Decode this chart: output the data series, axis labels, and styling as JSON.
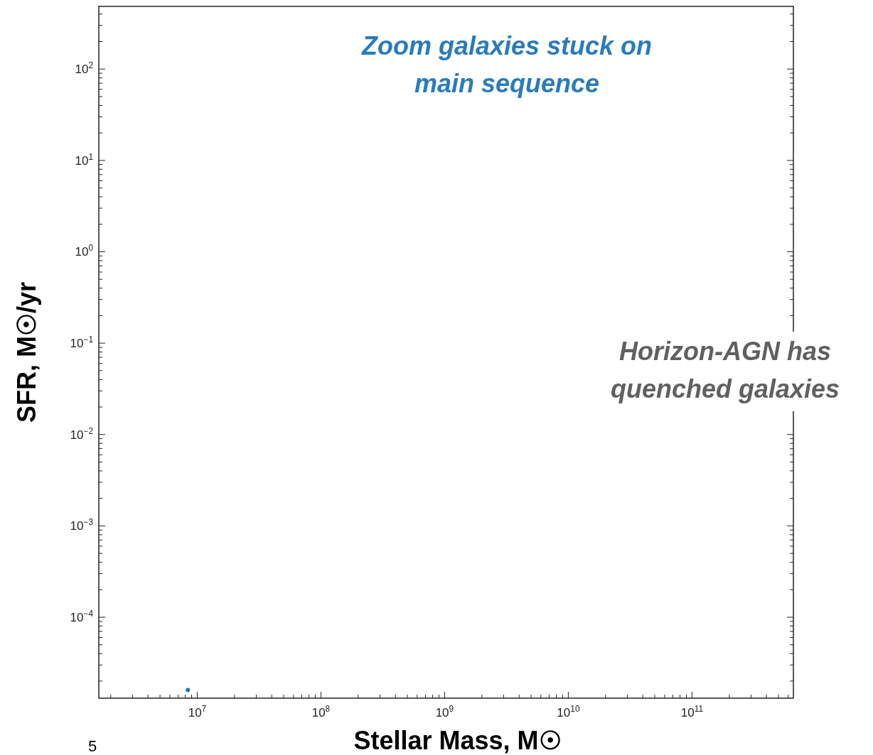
{
  "chart_data": {
    "type": "scatter",
    "xlabel": "Stellar Mass, M☉",
    "ylabel": "SFR, M☉/yr",
    "log": "xy",
    "grid": false,
    "marker": "circle",
    "xlim": [
      1600000,
      660000000000
    ],
    "ylim": [
      1.3e-05,
      485
    ],
    "xticks": [
      {
        "value": 2000000,
        "label": null
      },
      {
        "value": 3000000,
        "label": null
      },
      {
        "value": 4000000,
        "label": null
      },
      {
        "value": 5000000,
        "label": null
      },
      {
        "value": 6000000,
        "label": null
      },
      {
        "value": 7000000,
        "label": null
      },
      {
        "value": 8000000,
        "label": null
      },
      {
        "value": 9000000,
        "label": null
      },
      {
        "value": 10000000,
        "label": "10$^{7}$"
      },
      {
        "value": 20000000,
        "label": null
      },
      {
        "value": 30000000,
        "label": null
      },
      {
        "value": 40000000,
        "label": null
      },
      {
        "value": 50000000,
        "label": null
      },
      {
        "value": 60000000,
        "label": null
      },
      {
        "value": 70000000,
        "label": null
      },
      {
        "value": 80000000,
        "label": null
      },
      {
        "value": 90000000,
        "label": null
      },
      {
        "value": 100000000,
        "label": "10$^{8}$"
      },
      {
        "value": 200000000,
        "label": null
      },
      {
        "value": 300000000,
        "label": null
      },
      {
        "value": 400000000,
        "label": null
      },
      {
        "value": 500000000,
        "label": null
      },
      {
        "value": 600000000,
        "label": null
      },
      {
        "value": 700000000,
        "label": null
      },
      {
        "value": 800000000,
        "label": null
      },
      {
        "value": 900000000,
        "label": null
      },
      {
        "value": 1000000000,
        "label": "10$^{9}$"
      },
      {
        "value": 2000000000,
        "label": null
      },
      {
        "value": 3000000000,
        "label": null
      },
      {
        "value": 4000000000,
        "label": null
      },
      {
        "value": 5000000000,
        "label": null
      },
      {
        "value": 6000000000,
        "label": null
      },
      {
        "value": 7000000000,
        "label": null
      },
      {
        "value": 8000000000,
        "label": null
      },
      {
        "value": 9000000000,
        "label": null
      },
      {
        "value": 10000000000,
        "label": "10$^{10}$"
      },
      {
        "value": 20000000000,
        "label": null
      },
      {
        "value": 30000000000,
        "label": null
      },
      {
        "value": 40000000000,
        "label": null
      },
      {
        "value": 50000000000,
        "label": null
      },
      {
        "value": 60000000000,
        "label": null
      },
      {
        "value": 70000000000,
        "label": null
      },
      {
        "value": 80000000000,
        "label": null
      },
      {
        "value": 90000000000,
        "label": null
      },
      {
        "value": 100000000000,
        "label": "10$^{11}$"
      },
      {
        "value": 200000000000,
        "label": null
      },
      {
        "value": 300000000000,
        "label": null
      },
      {
        "value": 400000000000,
        "label": null
      },
      {
        "value": 500000000000,
        "label": null
      },
      {
        "value": 600000000000,
        "label": null
      }
    ],
    "yticks": [
      {
        "value": 2e-05,
        "label": null
      },
      {
        "value": 3e-05,
        "label": null
      },
      {
        "value": 4e-05,
        "label": null
      },
      {
        "value": 5e-05,
        "label": null
      },
      {
        "value": 6e-05,
        "label": null
      },
      {
        "value": 7e-05,
        "label": null
      },
      {
        "value": 8e-05,
        "label": null
      },
      {
        "value": 9e-05,
        "label": null
      },
      {
        "value": 0.0001,
        "label": "10$^{−4}$"
      },
      {
        "value": 0.0002,
        "label": null
      },
      {
        "value": 0.0003,
        "label": null
      },
      {
        "value": 0.0004,
        "label": null
      },
      {
        "value": 0.0005,
        "label": null
      },
      {
        "value": 0.0006,
        "label": null
      },
      {
        "value": 0.0007,
        "label": null
      },
      {
        "value": 0.0008,
        "label": null
      },
      {
        "value": 0.0009,
        "label": null
      },
      {
        "value": 0.001,
        "label": "10$^{−3}$"
      },
      {
        "value": 0.002,
        "label": null
      },
      {
        "value": 0.003,
        "label": null
      },
      {
        "value": 0.004,
        "label": null
      },
      {
        "value": 0.005,
        "label": null
      },
      {
        "value": 0.006,
        "label": null
      },
      {
        "value": 0.007,
        "label": null
      },
      {
        "value": 0.008,
        "label": null
      },
      {
        "value": 0.009,
        "label": null
      },
      {
        "value": 0.01,
        "label": "10$^{−2}$"
      },
      {
        "value": 0.02,
        "label": null
      },
      {
        "value": 0.03,
        "label": null
      },
      {
        "value": 0.04,
        "label": null
      },
      {
        "value": 0.05,
        "label": null
      },
      {
        "value": 0.06,
        "label": null
      },
      {
        "value": 0.07,
        "label": null
      },
      {
        "value": 0.08,
        "label": null
      },
      {
        "value": 0.09,
        "label": null
      },
      {
        "value": 0.1,
        "label": "10$^{−1}$"
      },
      {
        "value": 0.2,
        "label": null
      },
      {
        "value": 0.3,
        "label": null
      },
      {
        "value": 0.4,
        "label": null
      },
      {
        "value": 0.5,
        "label": null
      },
      {
        "value": 0.6,
        "label": null
      },
      {
        "value": 0.7,
        "label": null
      },
      {
        "value": 0.8,
        "label": null
      },
      {
        "value": 0.9,
        "label": null
      },
      {
        "value": 1,
        "label": "10$^{0}$"
      },
      {
        "value": 2,
        "label": null
      },
      {
        "value": 3,
        "label": null
      },
      {
        "value": 4,
        "label": null
      },
      {
        "value": 5,
        "label": null
      },
      {
        "value": 6,
        "label": null
      },
      {
        "value": 7,
        "label": null
      },
      {
        "value": 8,
        "label": null
      },
      {
        "value": 9,
        "label": null
      },
      {
        "value": 10,
        "label": "10$^{1}$"
      },
      {
        "value": 20,
        "label": null
      },
      {
        "value": 30,
        "label": null
      },
      {
        "value": 40,
        "label": null
      },
      {
        "value": 50,
        "label": null
      },
      {
        "value": 60,
        "label": null
      },
      {
        "value": 70,
        "label": null
      },
      {
        "value": 80,
        "label": null
      },
      {
        "value": 90,
        "label": null
      },
      {
        "value": 100,
        "label": "10$^{2}$"
      },
      {
        "value": 200,
        "label": null
      },
      {
        "value": 300,
        "label": null
      },
      {
        "value": 400,
        "label": null
      }
    ],
    "series": [
      {
        "color": "#1f77b4",
        "x": [
          8400000
        ],
        "values": [
          1.6e-05
        ]
      }
    ],
    "annotations": [
      "Zoom galaxies stuck on\nmain sequence",
      "Horizon-AGN has\nquenched galaxies",
      "5"
    ]
  }
}
